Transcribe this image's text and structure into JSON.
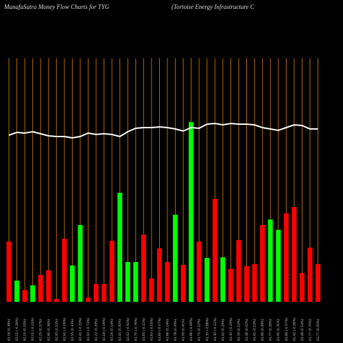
{
  "chart_data": {
    "type": "money-flow",
    "title": "MunafaSutra  Money Flow  Charts for TYG",
    "subtitle": "(Tortoise   Energy Infrastructure   C",
    "categories": [
      "42.18 (0.38%)",
      "42.02 (-0.19%)",
      "42.10 (0.19%)",
      "42.01 (-0.21%)",
      "42.25 (0.57%)",
      "42.40 (0.36%)",
      "42.45 (0.12%)",
      "42.41 (-0.09%)",
      "42.55 (0.33%)",
      "42.41 (-0.33%)",
      "42.10 (-0.73%)",
      "42.22 (0.29%)",
      "42.18 (-0.09%)",
      "42.24 (0.14%)",
      "42.41 (0.40%)",
      "42.02 (-0.92%)",
      "41.70 (-0.76%)",
      "41.65 (-0.12%)",
      "41.63 (-0.05%)",
      "41.60 (-0.07%)",
      "41.66 (0.14%)",
      "41.78 (0.29%)",
      "41.95 (0.41%)",
      "41.66 (-0.69%)",
      "41.71 (0.12%)",
      "41.35 (-0.86%)",
      "41.30 (-0.12%)",
      "41.42 (0.29%)",
      "41.30 (-0.29%)",
      "41.35 (0.12%)",
      "41.36 (0.02%)",
      "41.42 (0.15%)",
      "41.66 (0.58%)",
      "41.77 (0.26%)",
      "41.90 (0.31%)",
      "41.66 (-0.57%)",
      "41.42 (-0.58%)",
      "41.48 (0.14%)",
      "41.77 (0.70%)",
      "41.77 (0.00%)"
    ],
    "series": [
      {
        "name": "Money Flow",
        "colors": [
          "#ff0000",
          "#00ff00",
          "#ff0000",
          "#00ff00",
          "#ff0000",
          "#ff0000",
          "#ff0000",
          "#ff0000",
          "#00ff00",
          "#00ff00",
          "#ff0000",
          "#ff0000",
          "#ff0000",
          "#ff0000",
          "#00ff00",
          "#00ff00",
          "#00ff00",
          "#ff0000",
          "#ff0000",
          "#ff0000",
          "#ff0000",
          "#00ff00",
          "#ff0000",
          "#00ff00",
          "#ff0000",
          "#00ff00",
          "#ff0000",
          "#00ff00",
          "#ff0000",
          "#ff0000",
          "#ff0000",
          "#ff0000",
          "#ff0000",
          "#00ff00",
          "#00ff00",
          "#ff0000",
          "#ff0000",
          "#ff0000",
          "#ff0000",
          "#ff0000"
        ],
        "values": [
          88,
          31,
          17,
          24,
          39,
          46,
          4,
          92,
          53,
          112,
          6,
          26,
          26,
          89,
          159,
          58,
          58,
          98,
          34,
          78,
          58,
          127,
          54,
          262,
          88,
          64,
          150,
          65,
          48,
          90,
          52,
          55,
          112,
          120,
          105,
          129,
          138,
          42,
          79,
          55
        ]
      },
      {
        "name": "Price",
        "color": "#ffffff",
        "values": [
          243,
          247,
          246,
          248,
          245,
          242,
          241,
          241,
          239,
          241,
          246,
          244,
          245,
          244,
          241,
          248,
          253,
          254,
          254,
          255,
          254,
          252,
          249,
          254,
          253,
          259,
          260,
          258,
          260,
          259,
          259,
          258,
          254,
          252,
          250,
          254,
          258,
          257,
          252,
          252
        ]
      }
    ]
  }
}
